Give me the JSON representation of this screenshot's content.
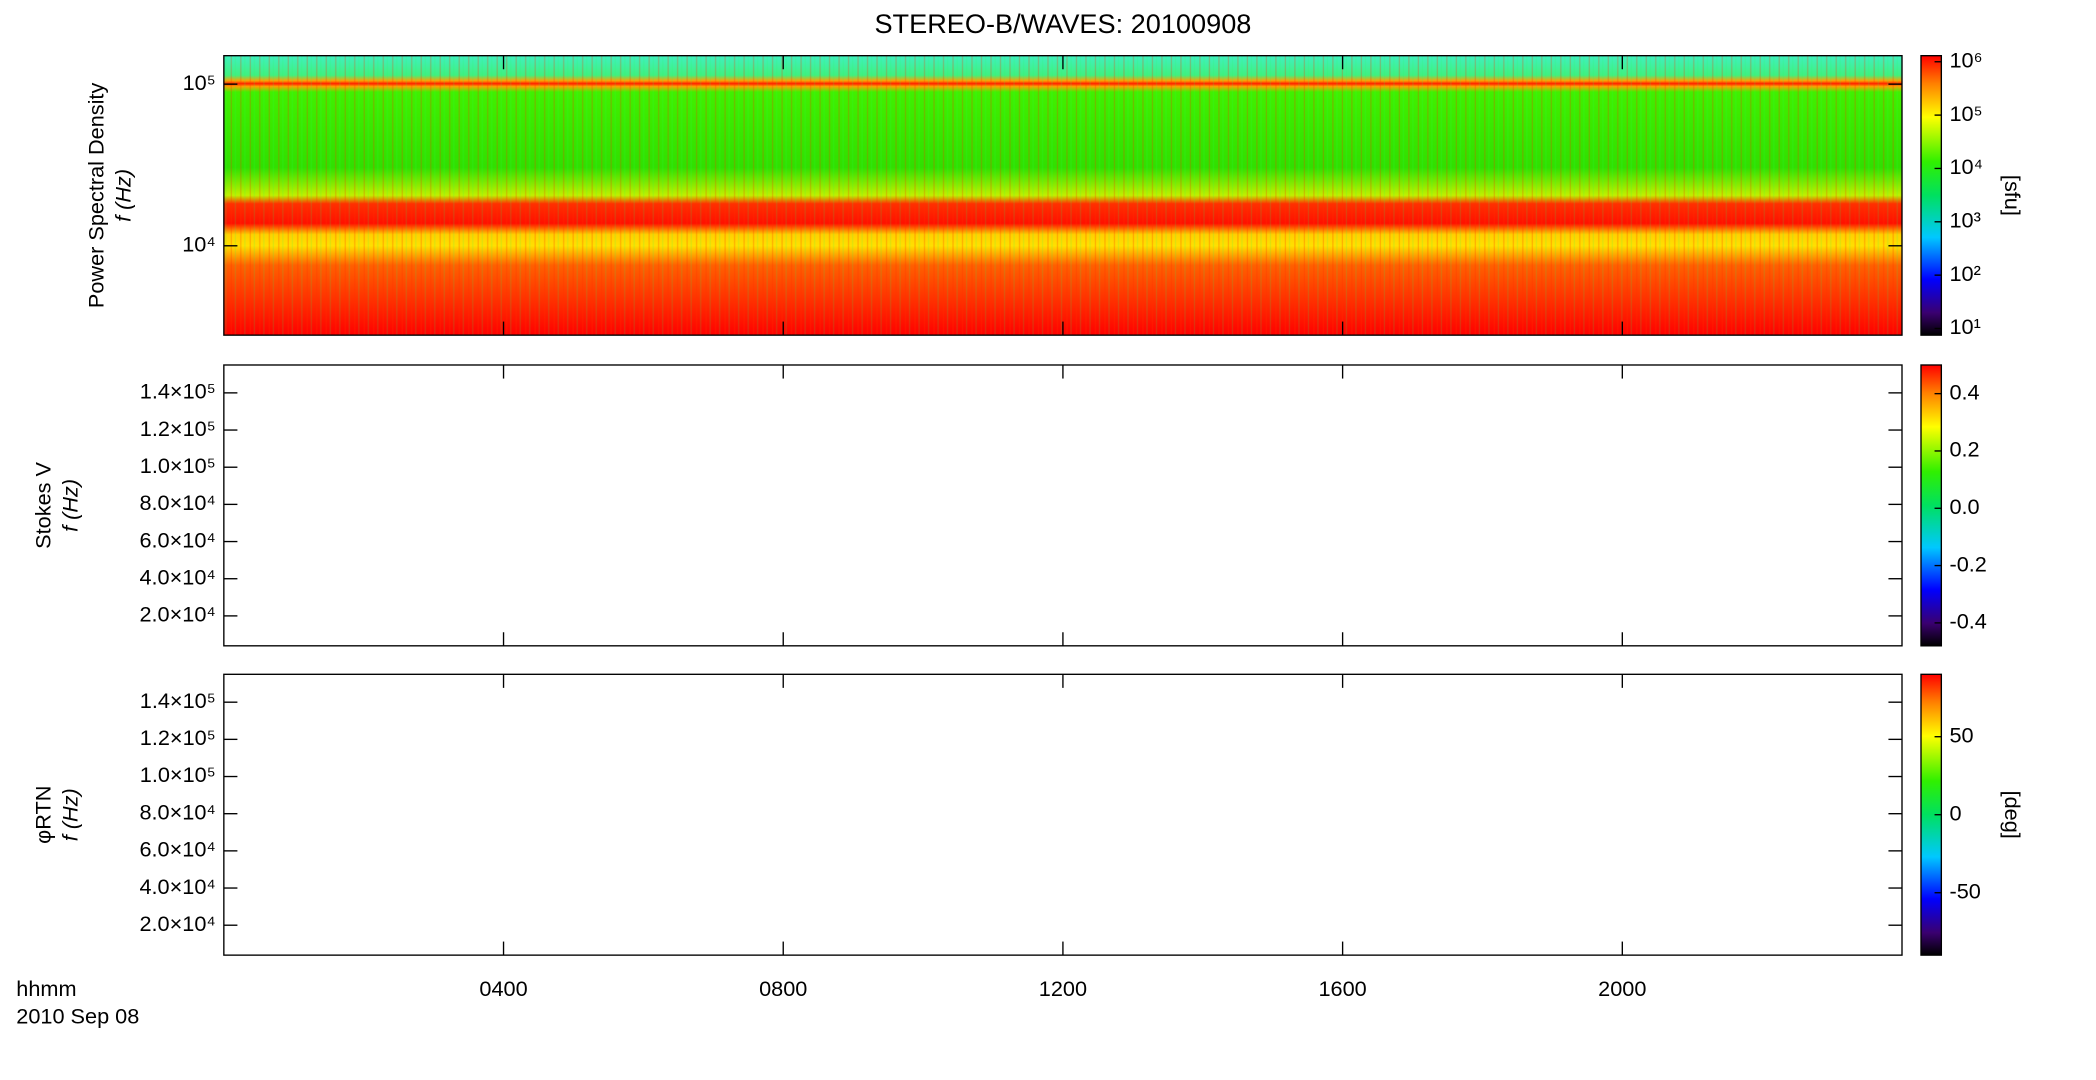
{
  "chart_data": [
    {
      "type": "heatmap",
      "title": "STEREO-B/WAVES: 20100908",
      "ylabel": [
        "Power Spectral Density",
        "f (Hz)"
      ],
      "ylog": true,
      "ylim": [
        2800,
        150000
      ],
      "yticks": [
        {
          "value": 10000,
          "label": "10⁴"
        },
        {
          "value": 100000,
          "label": "10⁵"
        }
      ],
      "xlim": [
        0,
        24
      ],
      "colorbar": {
        "log": true,
        "clim": [
          7.5,
          1300000
        ],
        "label": "[sfu]",
        "ticks": [
          {
            "value": 10,
            "label": "10¹"
          },
          {
            "value": 100,
            "label": "10²"
          },
          {
            "value": 1000,
            "label": "10³"
          },
          {
            "value": 10000,
            "label": "10⁴"
          },
          {
            "value": 100000,
            "label": "10⁵"
          },
          {
            "value": 1000000,
            "label": "10⁶"
          }
        ]
      }
    },
    {
      "type": "heatmap",
      "ylabel": [
        "Stokes V",
        "f (Hz)"
      ],
      "ylog": false,
      "ylim": [
        3900,
        155000
      ],
      "yticks": [
        {
          "value": 20000,
          "label": "2.0×10⁴"
        },
        {
          "value": 40000,
          "label": "4.0×10⁴"
        },
        {
          "value": 60000,
          "label": "6.0×10⁴"
        },
        {
          "value": 80000,
          "label": "8.0×10⁴"
        },
        {
          "value": 100000,
          "label": "1.0×10⁵"
        },
        {
          "value": 120000,
          "label": "1.2×10⁵"
        },
        {
          "value": 140000,
          "label": "1.4×10⁵"
        }
      ],
      "xlim": [
        0,
        24
      ],
      "colorbar": {
        "log": false,
        "clim": [
          -0.48,
          0.5
        ],
        "ticks": [
          -0.4,
          -0.2,
          {
            "value": 0,
            "label": "0.0"
          },
          0.2,
          0.4
        ]
      }
    },
    {
      "type": "heatmap",
      "ylabel": [
        "φRTN",
        "f (Hz)"
      ],
      "ylog": false,
      "ylim": [
        3900,
        155000
      ],
      "yticks": [
        {
          "value": 20000,
          "label": "2.0×10⁴"
        },
        {
          "value": 40000,
          "label": "4.0×10⁴"
        },
        {
          "value": 60000,
          "label": "6.0×10⁴"
        },
        {
          "value": 80000,
          "label": "8.0×10⁴"
        },
        {
          "value": 100000,
          "label": "1.0×10⁵"
        },
        {
          "value": 120000,
          "label": "1.2×10⁵"
        },
        {
          "value": 140000,
          "label": "1.4×10⁵"
        }
      ],
      "xlim": [
        0,
        24
      ],
      "xticks": [
        {
          "value": 4,
          "label": "0400"
        },
        {
          "value": 8,
          "label": "0800"
        },
        {
          "value": 12,
          "label": "1200"
        },
        {
          "value": 16,
          "label": "1600"
        },
        {
          "value": 20,
          "label": "2000"
        }
      ],
      "xlabel": [
        "hhmm",
        "2010 Sep 08"
      ],
      "colorbar": {
        "log": false,
        "clim": [
          -90,
          90
        ],
        "label": "[deg]",
        "ticks": [
          -50,
          0,
          50
        ]
      }
    }
  ]
}
